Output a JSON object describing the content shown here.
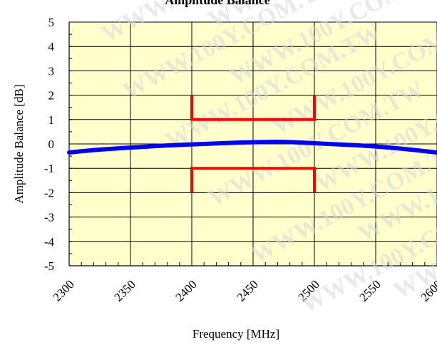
{
  "chart_data": {
    "type": "line",
    "title": "Amplitude Balance",
    "xlabel": "Frequency [MHz]",
    "ylabel": "Amplitude Balance [dB]",
    "xlim": [
      2300,
      2600
    ],
    "ylim": [
      -5,
      5
    ],
    "x_ticks": [
      2300,
      2350,
      2400,
      2450,
      2500,
      2550,
      2600
    ],
    "y_ticks": [
      5,
      4,
      3,
      2,
      1,
      0,
      -1,
      -2,
      -3,
      -4,
      -5
    ],
    "grid": true,
    "series": [
      {
        "color": "#0000ff",
        "x": [
          2300,
          2320,
          2340,
          2360,
          2380,
          2400,
          2420,
          2440,
          2460,
          2470,
          2480,
          2500,
          2520,
          2540,
          2560,
          2580,
          2600
        ],
        "y": [
          -0.35,
          -0.25,
          -0.18,
          -0.12,
          -0.06,
          -0.02,
          0.02,
          0.06,
          0.08,
          0.09,
          0.08,
          0.03,
          -0.02,
          -0.07,
          -0.14,
          -0.24,
          -0.35
        ]
      }
    ],
    "limits": [
      {
        "color": "#ff0000",
        "x": [
          2400,
          2400,
          2500,
          2500
        ],
        "y": [
          2,
          1,
          1,
          2
        ]
      },
      {
        "color": "#ff0000",
        "x": [
          2400,
          2400,
          2500,
          2500
        ],
        "y": [
          -2,
          -1,
          -1,
          -2
        ]
      }
    ],
    "colors": {
      "plot_background": "#ffffcc",
      "grid": "#000000"
    },
    "watermark": "WWW.100Y.COM.TW"
  }
}
